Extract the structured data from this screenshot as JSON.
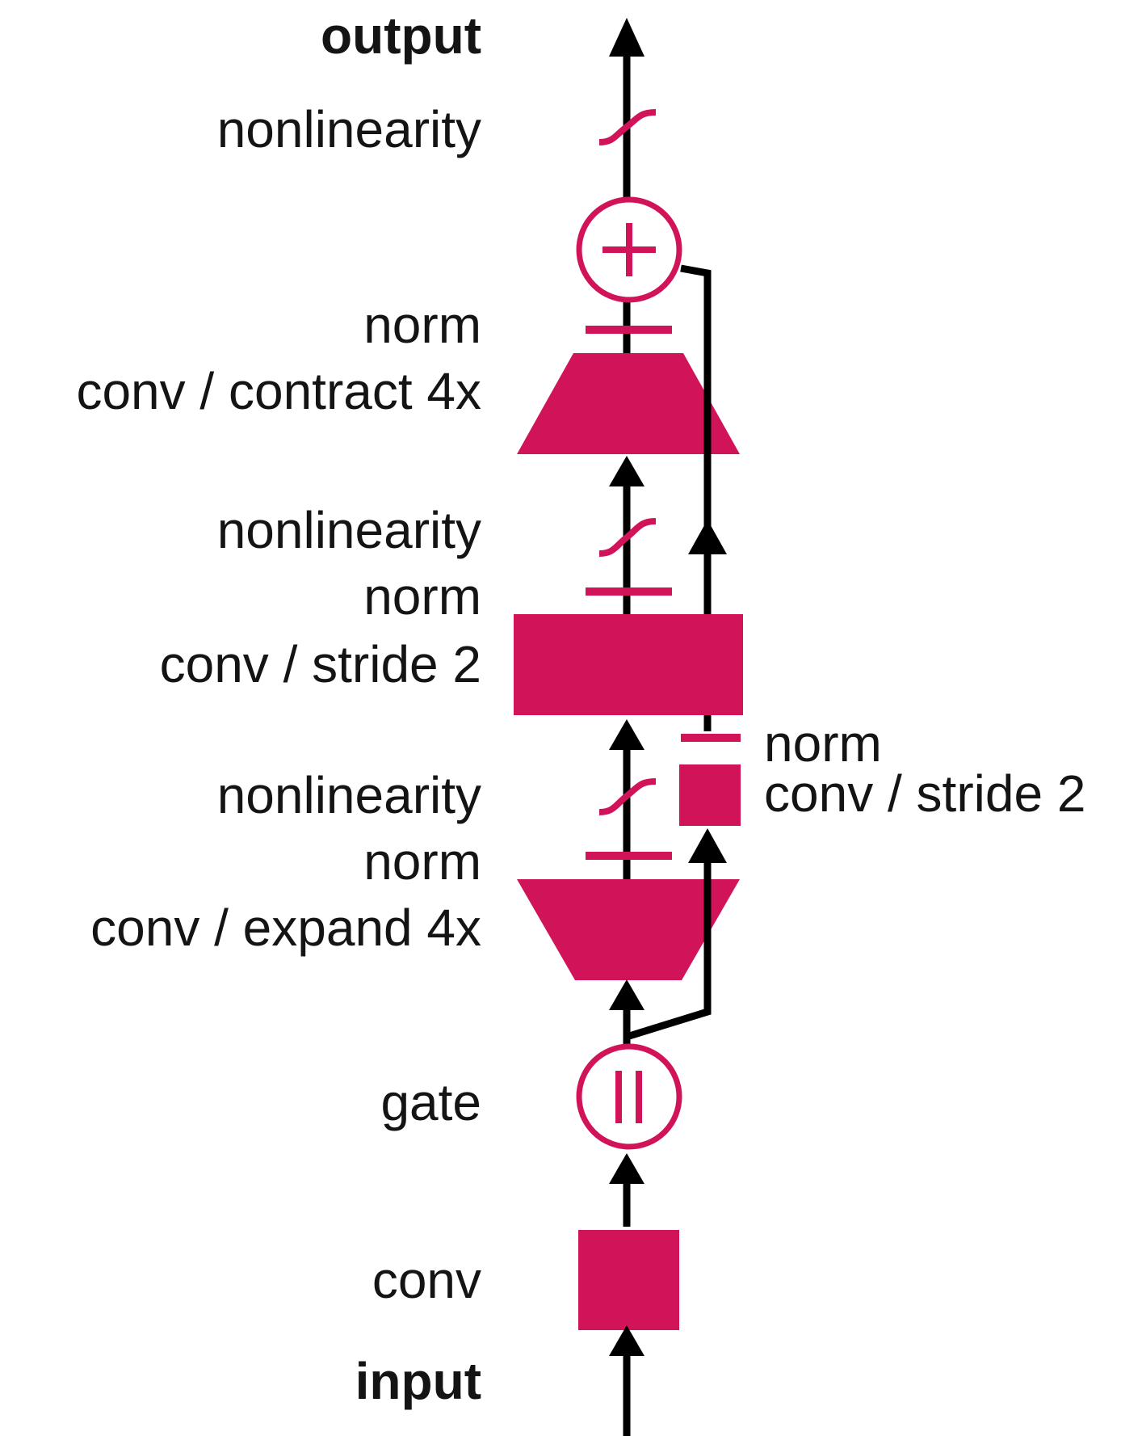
{
  "diagram": {
    "colors": {
      "accent": "#d1145a",
      "line": "#000000",
      "text": "#141414"
    },
    "labels": {
      "output": "output",
      "nonlinearity_top": "nonlinearity",
      "norm_top": "norm",
      "conv_contract": "conv / contract 4x",
      "nonlinearity_mid": "nonlinearity",
      "norm_mid": "norm",
      "conv_stride_main": "conv / stride 2",
      "nonlinearity_low": "nonlinearity",
      "norm_low": "norm",
      "conv_expand": "conv / expand 4x",
      "gate": "gate",
      "conv": "conv",
      "input": "input",
      "skip_norm": "norm",
      "skip_conv": "conv / stride 2"
    },
    "icons": {
      "add": "plus-in-circle-icon",
      "gate": "parallel-bars-in-circle-icon",
      "nonlinearity": "sigmoid-curve-icon",
      "norm": "horizontal-bar-icon",
      "arrow": "arrowhead-icon"
    }
  }
}
